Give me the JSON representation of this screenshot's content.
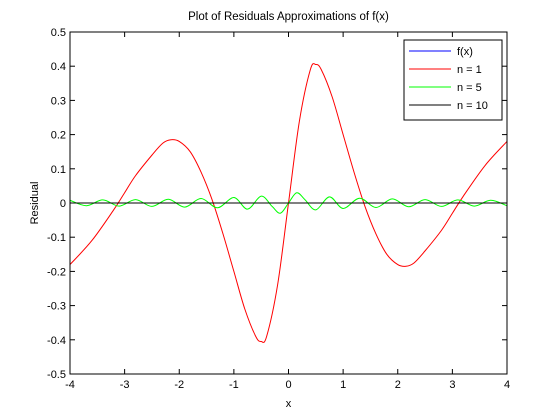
{
  "chart_data": {
    "type": "line",
    "title": "Plot of Residuals Approximations of f(x)",
    "xlabel": "x",
    "ylabel": "Residual",
    "xlim": [
      -4,
      4
    ],
    "ylim": [
      -0.5,
      0.5
    ],
    "xticks": [
      -4,
      -3,
      -2,
      -1,
      0,
      1,
      2,
      3,
      4
    ],
    "yticks": [
      -0.5,
      -0.4,
      -0.3,
      -0.2,
      -0.1,
      0,
      0.1,
      0.2,
      0.3,
      0.4,
      0.5
    ],
    "grid": false,
    "legend_position": "top-right",
    "series": [
      {
        "name": "f(x)",
        "color": "#0000ff",
        "x": [
          -4,
          4
        ],
        "y": [
          0,
          0
        ]
      },
      {
        "name": "n = 1",
        "color": "#ff0000",
        "x": [
          -4.0,
          -3.6,
          -3.2,
          -3.0,
          -2.8,
          -2.5,
          -2.3,
          -2.15,
          -2.0,
          -1.8,
          -1.6,
          -1.4,
          -1.2,
          -1.0,
          -0.8,
          -0.6,
          -0.5,
          -0.4,
          -0.2,
          0.0,
          0.2,
          0.4,
          0.5,
          0.6,
          0.8,
          1.0,
          1.2,
          1.4,
          1.6,
          1.8,
          2.0,
          2.15,
          2.3,
          2.5,
          2.8,
          3.0,
          3.2,
          3.6,
          4.0
        ],
        "y": [
          -0.18,
          -0.11,
          -0.02,
          0.03,
          0.08,
          0.14,
          0.175,
          0.185,
          0.18,
          0.15,
          0.09,
          0.01,
          -0.09,
          -0.2,
          -0.31,
          -0.39,
          -0.405,
          -0.39,
          -0.24,
          0.0,
          0.24,
          0.39,
          0.405,
          0.39,
          0.31,
          0.2,
          0.09,
          -0.01,
          -0.09,
          -0.15,
          -0.18,
          -0.185,
          -0.175,
          -0.14,
          -0.08,
          -0.03,
          0.02,
          0.11,
          0.18
        ]
      },
      {
        "name": "n = 5",
        "color": "#00ff00",
        "x": [
          -4.0,
          -3.7,
          -3.4,
          -3.1,
          -2.8,
          -2.5,
          -2.2,
          -1.9,
          -1.6,
          -1.3,
          -1.0,
          -0.75,
          -0.5,
          -0.3,
          -0.15,
          0.0,
          0.15,
          0.3,
          0.5,
          0.75,
          1.0,
          1.3,
          1.6,
          1.9,
          2.2,
          2.5,
          2.8,
          3.1,
          3.4,
          3.7,
          4.0
        ],
        "y": [
          0.008,
          -0.008,
          0.009,
          -0.009,
          0.01,
          -0.01,
          0.011,
          -0.012,
          0.013,
          -0.014,
          0.016,
          -0.018,
          0.02,
          -0.01,
          -0.03,
          0.0,
          0.03,
          0.01,
          -0.02,
          0.018,
          -0.016,
          0.014,
          -0.013,
          0.012,
          -0.011,
          0.01,
          -0.01,
          0.009,
          -0.009,
          0.008,
          -0.008
        ]
      },
      {
        "name": "n = 10",
        "color": "#000000",
        "x": [
          -4,
          4
        ],
        "y": [
          0,
          0
        ]
      }
    ]
  }
}
